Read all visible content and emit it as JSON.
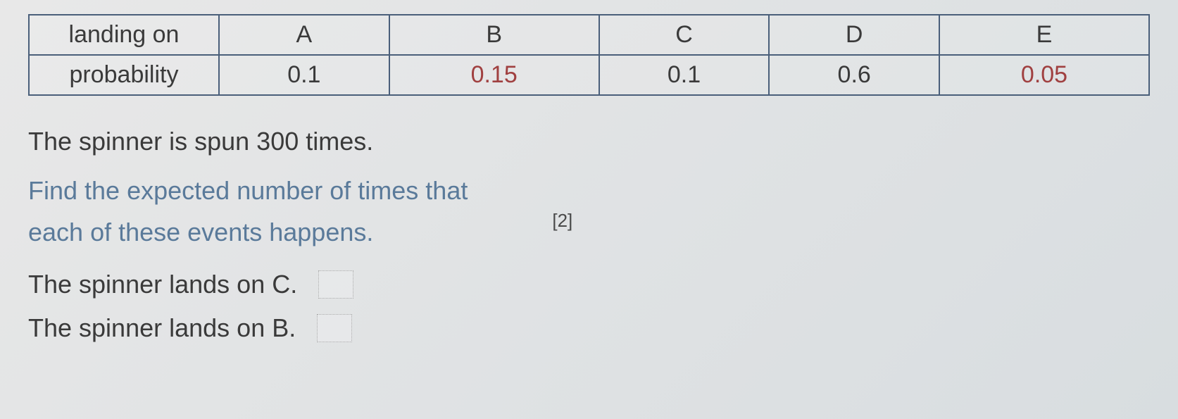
{
  "table": {
    "border_color": "#4a5f7a",
    "text_color": "#3a3a3a",
    "highlight_color": "#a04040",
    "font_size": 34,
    "rows": [
      {
        "label": "landing on",
        "cells": [
          "A",
          "B",
          "C",
          "D",
          "E"
        ],
        "highlights": [
          false,
          false,
          false,
          false,
          false
        ]
      },
      {
        "label": "probability",
        "cells": [
          "0.1",
          "0.15",
          "0.1",
          "0.6",
          "0.05"
        ],
        "highlights": [
          false,
          true,
          false,
          false,
          true
        ]
      }
    ]
  },
  "text": {
    "line1": "The spinner is spun 300 times.",
    "instruction1": "Find the expected number of times that",
    "instruction2": "each of these events happens.",
    "marks": "[2]",
    "question1": "The spinner lands on C.",
    "question2": "The spinner lands on B."
  },
  "colors": {
    "background_start": "#e8e8e8",
    "background_end": "#d8dde0",
    "body_text": "#3a3a3a",
    "instruction_text": "#5a7a9a"
  }
}
